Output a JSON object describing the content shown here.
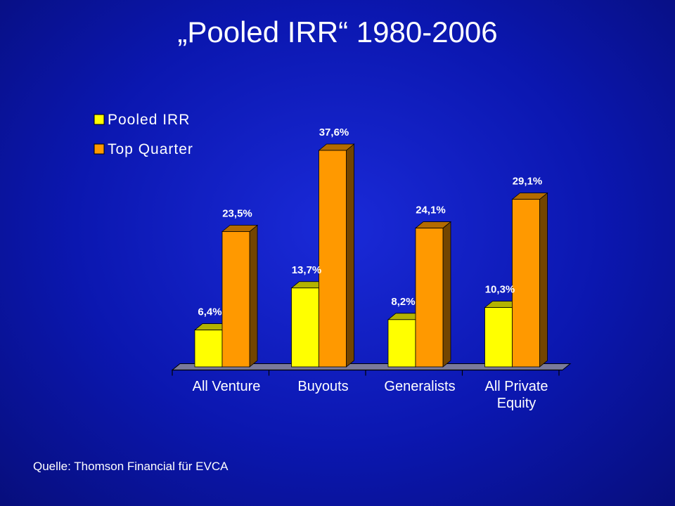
{
  "title": "„Pooled IRR“ 1980-2006",
  "source": "Quelle: Thomson Financial für EVCA",
  "chart_data": {
    "type": "bar",
    "categories": [
      [
        "All Venture"
      ],
      [
        "Buyouts"
      ],
      [
        "Generalists"
      ],
      [
        "All Private",
        "Equity"
      ]
    ],
    "series": [
      {
        "name": "Pooled IRR",
        "color": "#ffff00",
        "values": [
          6.4,
          13.7,
          8.2,
          10.3
        ],
        "labels": [
          "6,4%",
          "13,7%",
          "8,2%",
          "10,3%"
        ]
      },
      {
        "name": "Top Quarter",
        "color": "#ff9900",
        "values": [
          23.5,
          37.6,
          24.1,
          29.1
        ],
        "labels": [
          "23,5%",
          "37,6%",
          "24,1%",
          "29,1%"
        ]
      }
    ],
    "ylim": [
      0,
      37.6
    ],
    "grid": false,
    "legend": "top-left",
    "bar_style": "3d"
  }
}
